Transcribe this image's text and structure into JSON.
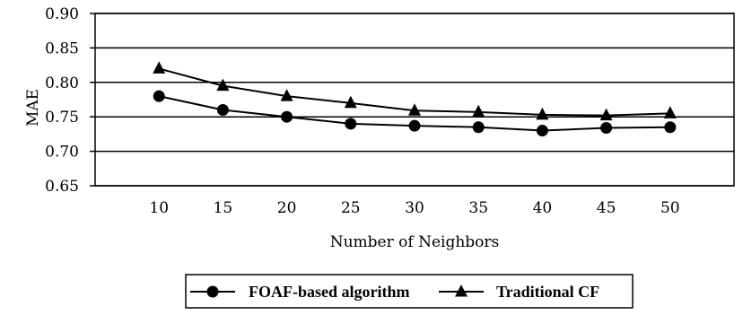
{
  "chart_data": {
    "type": "line",
    "xlabel": "Number of Neighbors",
    "ylabel": "MAE",
    "categories": [
      "10",
      "15",
      "20",
      "25",
      "30",
      "35",
      "40",
      "45",
      "50"
    ],
    "ylim": [
      0.65,
      0.9
    ],
    "yticks": [
      "0.65",
      "0.70",
      "0.75",
      "0.80",
      "0.85",
      "0.90"
    ],
    "ytick_values": [
      0.65,
      0.7,
      0.75,
      0.8,
      0.85,
      0.9
    ],
    "grid": "horizontal",
    "legend_position": "bottom",
    "series": [
      {
        "name": "FOAF-based algorithm",
        "marker": "circle",
        "color": "#000000",
        "values": [
          0.78,
          0.76,
          0.75,
          0.74,
          0.737,
          0.735,
          0.73,
          0.734,
          0.735
        ]
      },
      {
        "name": "Traditional CF",
        "marker": "triangle",
        "color": "#000000",
        "values": [
          0.82,
          0.795,
          0.78,
          0.77,
          0.759,
          0.757,
          0.753,
          0.752,
          0.755
        ]
      }
    ]
  }
}
